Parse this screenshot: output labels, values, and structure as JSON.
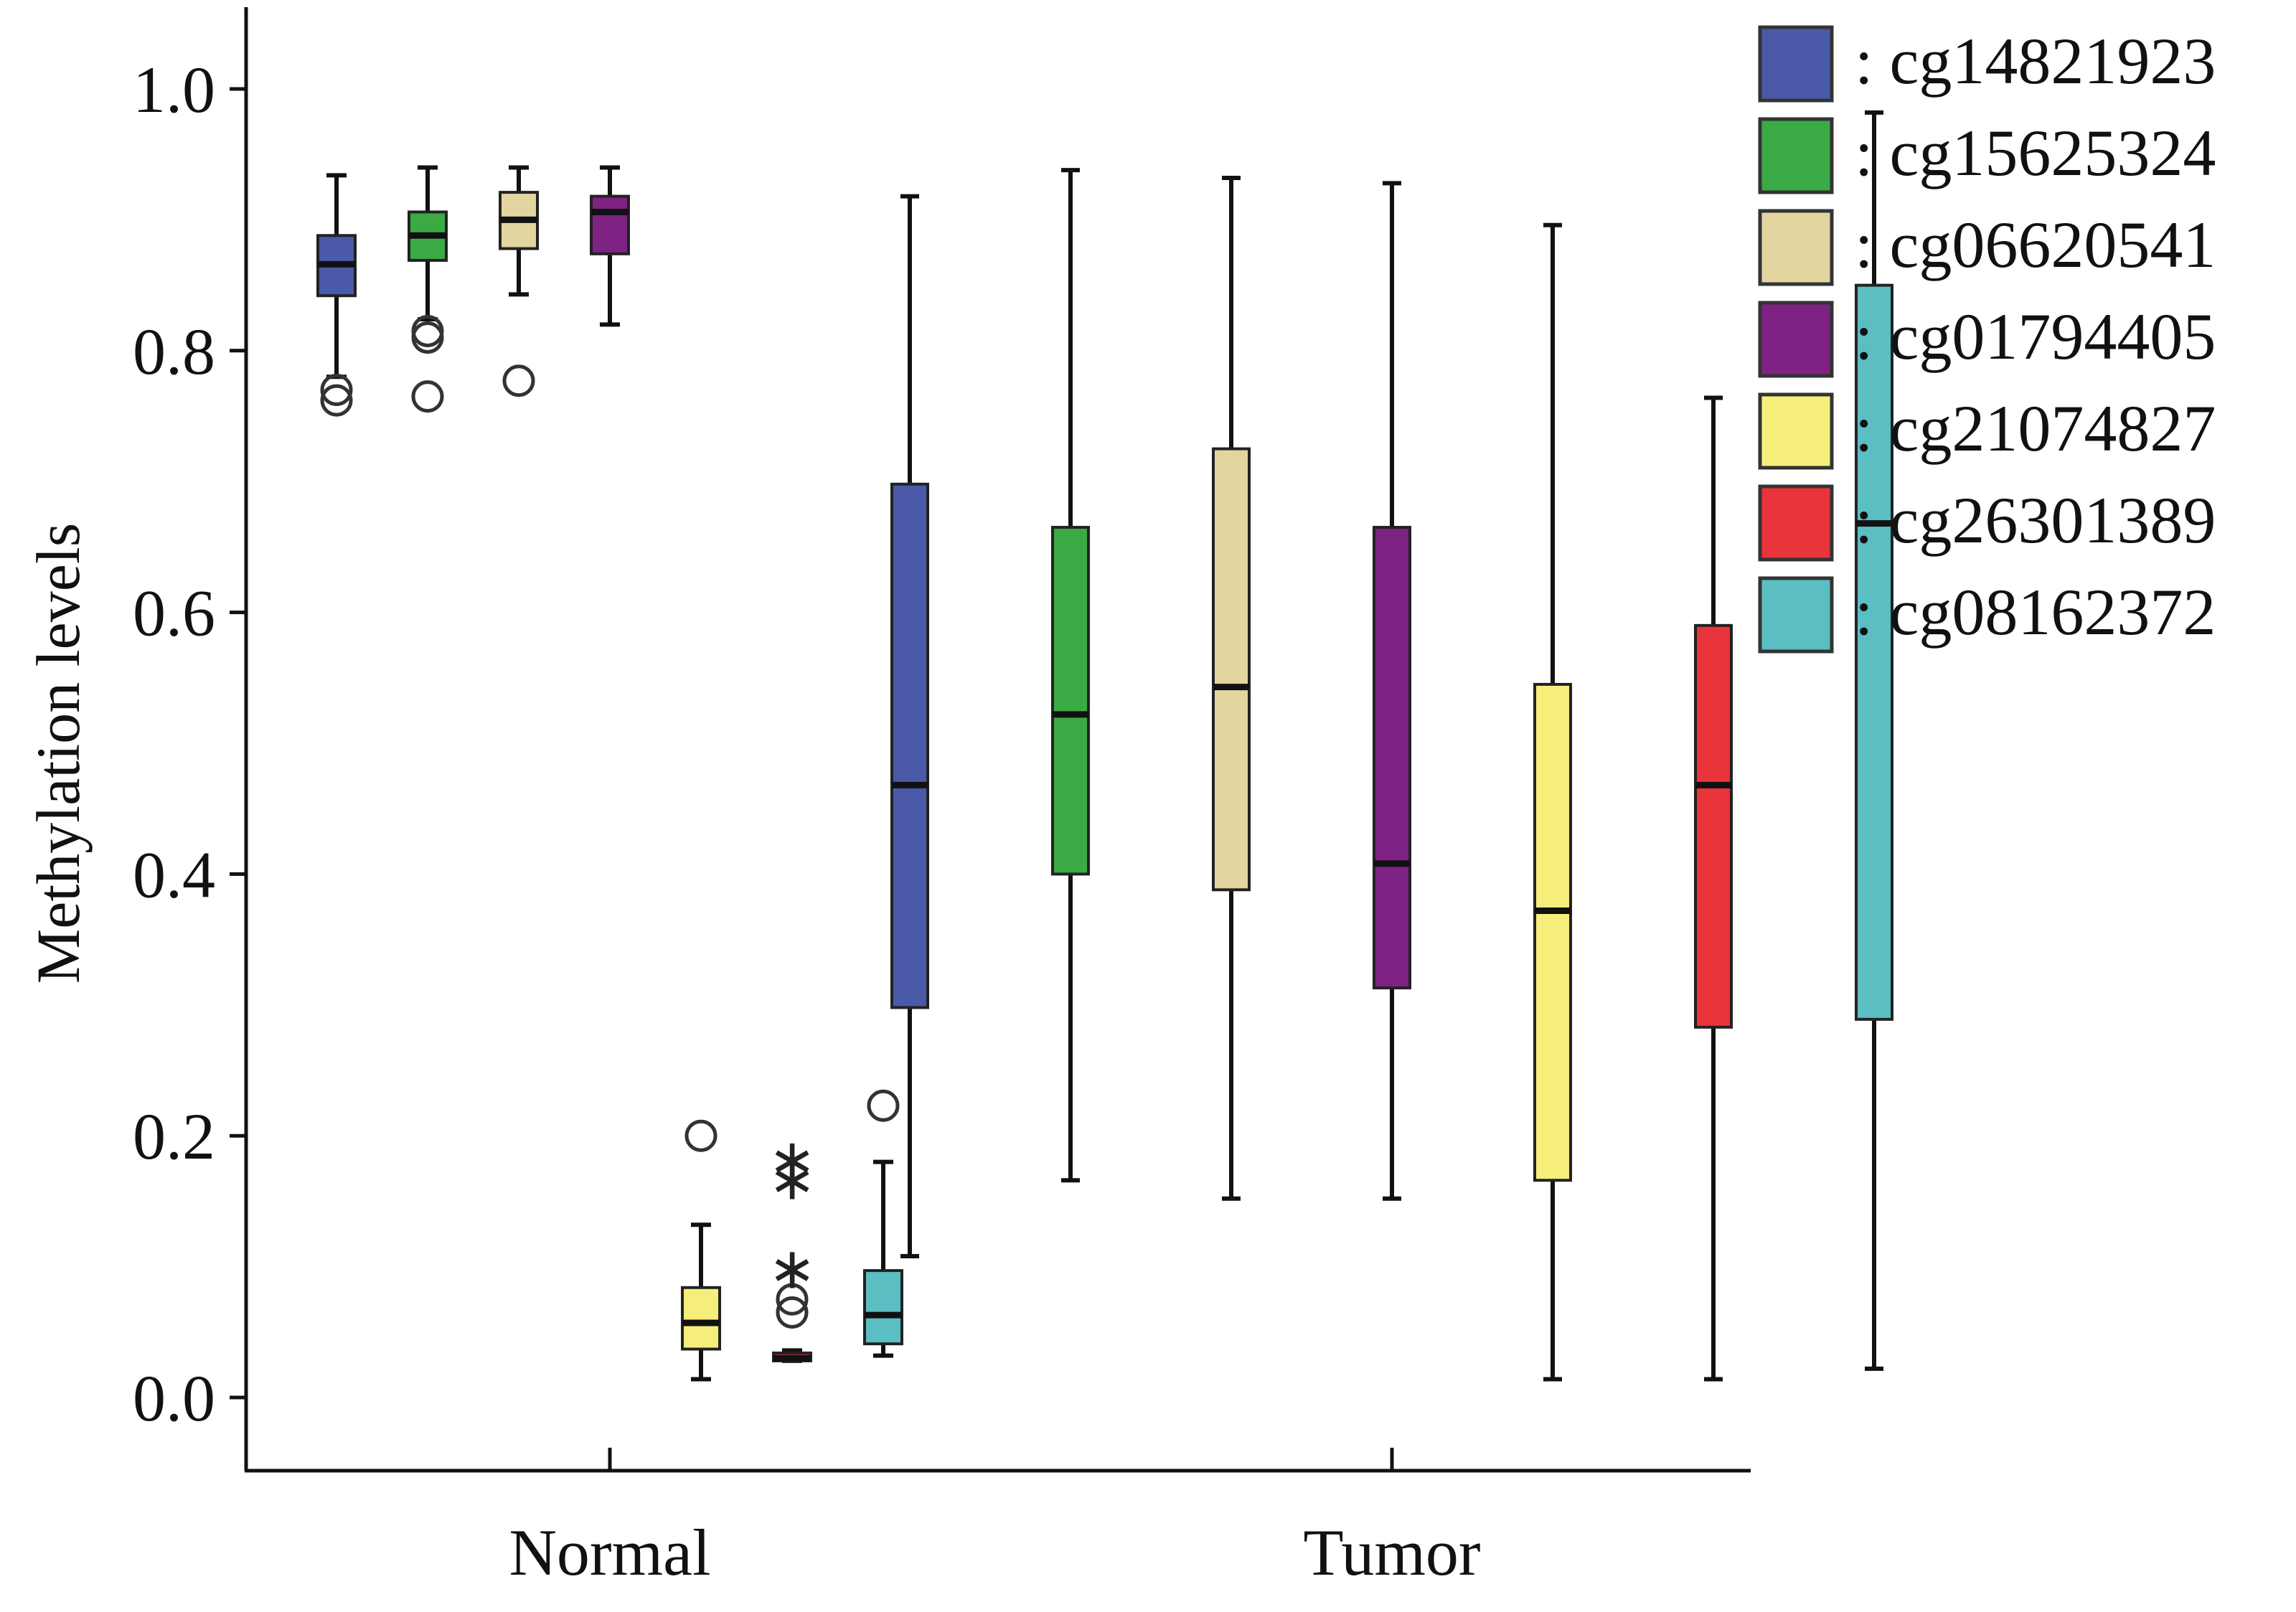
{
  "chart_data": {
    "type": "box",
    "title": "",
    "xlabel": "",
    "ylabel": "Methylation levels",
    "ylim": [
      -0.06,
      1.06
    ],
    "yticks": [
      0.0,
      0.2,
      0.4,
      0.6,
      0.8,
      1.0
    ],
    "ytick_labels": [
      "0.0",
      "0.2",
      "0.4",
      "0.6",
      "0.8",
      "1.0"
    ],
    "categories": [
      "Normal",
      "Tumor"
    ],
    "legend_position": "top-right",
    "series": [
      {
        "name": ": cg14821923",
        "color": "#4a5aa8",
        "boxes": [
          {
            "group": "Normal",
            "whisker_low": 0.78,
            "q1": 0.842,
            "median": 0.866,
            "q3": 0.888,
            "whisker_high": 0.934,
            "outliers_circle": [
              0.762,
              0.77
            ],
            "outliers_star": []
          },
          {
            "group": "Tumor",
            "whisker_low": 0.108,
            "q1": 0.298,
            "median": 0.468,
            "q3": 0.698,
            "whisker_high": 0.918,
            "outliers_circle": [],
            "outliers_star": []
          }
        ]
      },
      {
        "name": ": cg15625324",
        "color": "#3aaa45",
        "boxes": [
          {
            "group": "Normal",
            "whisker_low": 0.824,
            "q1": 0.869,
            "median": 0.888,
            "q3": 0.906,
            "whisker_high": 0.94,
            "outliers_circle": [
              0.81,
              0.815,
              0.765
            ],
            "outliers_star": []
          },
          {
            "group": "Tumor",
            "whisker_low": 0.166,
            "q1": 0.4,
            "median": 0.522,
            "q3": 0.665,
            "whisker_high": 0.938,
            "outliers_circle": [],
            "outliers_star": []
          }
        ]
      },
      {
        "name": ": cg06620541",
        "color": "#e3d5a0",
        "boxes": [
          {
            "group": "Normal",
            "whisker_low": 0.843,
            "q1": 0.878,
            "median": 0.9,
            "q3": 0.921,
            "whisker_high": 0.94,
            "outliers_circle": [
              0.777
            ],
            "outliers_star": []
          },
          {
            "group": "Tumor",
            "whisker_low": 0.152,
            "q1": 0.388,
            "median": 0.543,
            "q3": 0.725,
            "whisker_high": 0.932,
            "outliers_circle": [],
            "outliers_star": []
          }
        ]
      },
      {
        "name": ": cg01794405",
        "color": "#7e2283",
        "boxes": [
          {
            "group": "Normal",
            "whisker_low": 0.82,
            "q1": 0.874,
            "median": 0.906,
            "q3": 0.918,
            "whisker_high": 0.94,
            "outliers_circle": [],
            "outliers_star": []
          },
          {
            "group": "Tumor",
            "whisker_low": 0.152,
            "q1": 0.313,
            "median": 0.408,
            "q3": 0.665,
            "whisker_high": 0.928,
            "outliers_circle": [],
            "outliers_star": []
          }
        ]
      },
      {
        "name": ": cg21074827",
        "color": "#f6ee7a",
        "boxes": [
          {
            "group": "Normal",
            "whisker_low": 0.014,
            "q1": 0.037,
            "median": 0.057,
            "q3": 0.084,
            "whisker_high": 0.132,
            "outliers_circle": [
              0.2
            ],
            "outliers_star": []
          },
          {
            "group": "Tumor",
            "whisker_low": 0.014,
            "q1": 0.166,
            "median": 0.372,
            "q3": 0.545,
            "whisker_high": 0.896,
            "outliers_circle": [],
            "outliers_star": []
          }
        ]
      },
      {
        "name": ": cg26301389",
        "color": "#e8343a",
        "boxes": [
          {
            "group": "Normal",
            "whisker_low": 0.028,
            "q1": 0.028,
            "median": 0.03,
            "q3": 0.034,
            "whisker_high": 0.036,
            "outliers_circle": [
              0.065,
              0.075
            ],
            "outliers_star": [
              0.1,
              0.168,
              0.183
            ]
          },
          {
            "group": "Tumor",
            "whisker_low": 0.014,
            "q1": 0.283,
            "median": 0.468,
            "q3": 0.59,
            "whisker_high": 0.764,
            "outliers_circle": [],
            "outliers_star": []
          }
        ]
      },
      {
        "name": ": cg08162372",
        "color": "#5bbec3",
        "boxes": [
          {
            "group": "Normal",
            "whisker_low": 0.032,
            "q1": 0.041,
            "median": 0.063,
            "q3": 0.097,
            "whisker_high": 0.18,
            "outliers_circle": [
              0.223
            ],
            "outliers_star": []
          },
          {
            "group": "Tumor",
            "whisker_low": 0.022,
            "q1": 0.289,
            "median": 0.668,
            "q3": 0.85,
            "whisker_high": 0.982,
            "outliers_circle": [],
            "outliers_star": []
          }
        ]
      }
    ]
  }
}
